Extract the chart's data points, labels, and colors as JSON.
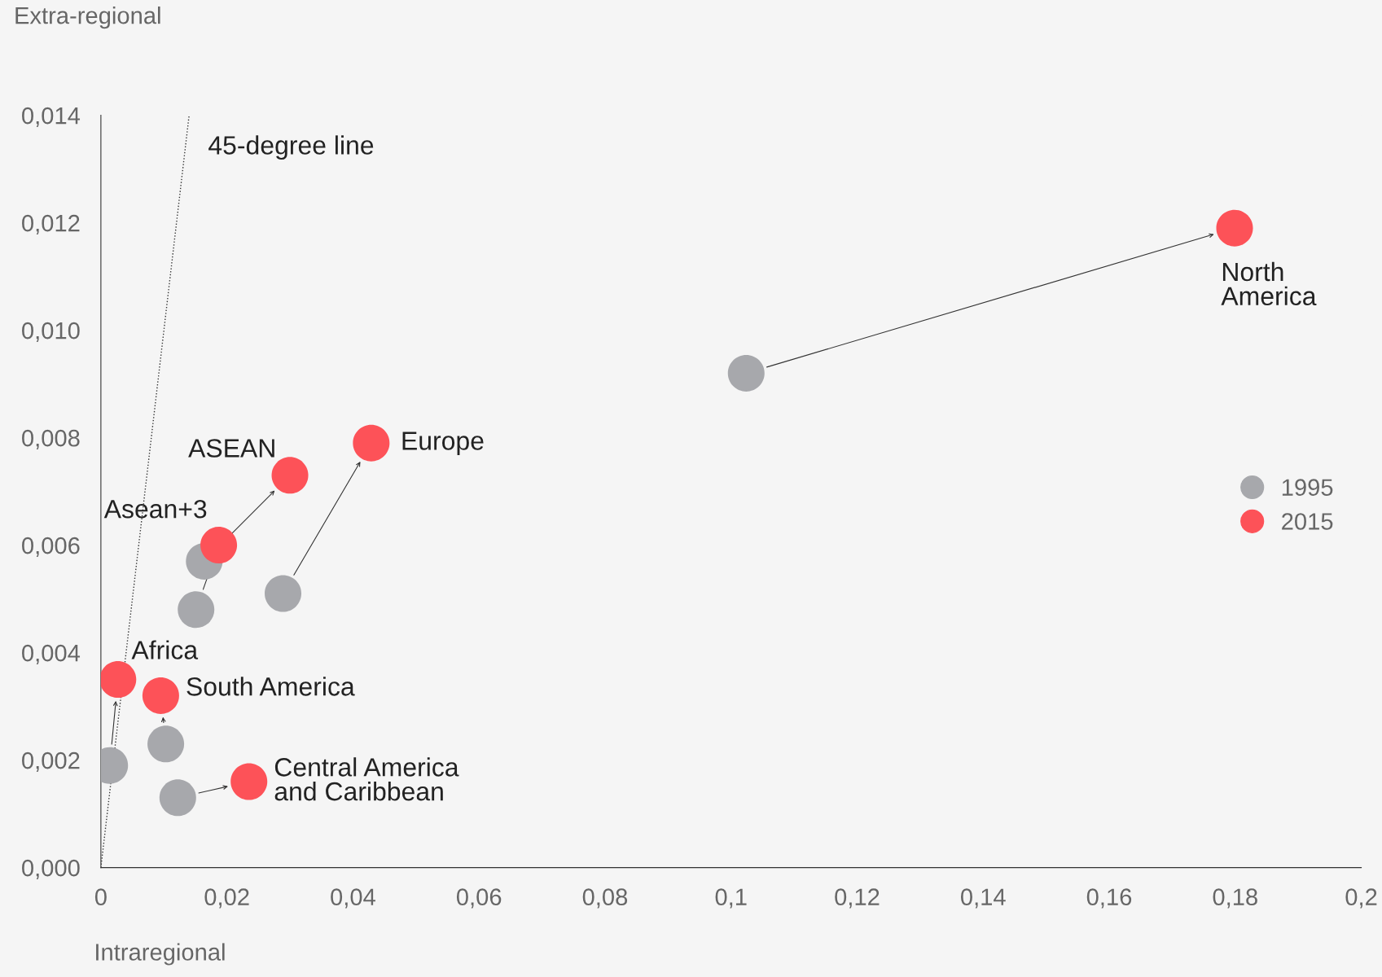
{
  "chart_data": {
    "type": "scatter",
    "xlabel": "Intraregional",
    "ylabel": "Extra-regional",
    "xlim": [
      0,
      0.2
    ],
    "ylim": [
      0,
      0.014
    ],
    "xticks": [
      0,
      {
        "value": 0.02,
        "label": "0,02"
      },
      {
        "value": 0.04,
        "label": "0,04"
      },
      {
        "value": 0.06,
        "label": "0,06"
      },
      {
        "value": 0.08,
        "label": "0,08"
      },
      {
        "value": 0.1,
        "label": "0,1"
      },
      {
        "value": 0.12,
        "label": "0,12"
      },
      {
        "value": 0.14,
        "label": "0,14"
      },
      {
        "value": 0.16,
        "label": "0,16"
      },
      {
        "value": 0.18,
        "label": "0,18"
      },
      {
        "value": 0.2,
        "label": "0,2"
      }
    ],
    "yticks": [
      {
        "value": 0,
        "label": "0,000"
      },
      {
        "value": 0.002,
        "label": "0,002"
      },
      {
        "value": 0.004,
        "label": "0,004"
      },
      {
        "value": 0.006,
        "label": "0,006"
      },
      {
        "value": 0.008,
        "label": "0,008"
      },
      {
        "value": 0.01,
        "label": "0,010"
      },
      {
        "value": 0.012,
        "label": "0,012"
      },
      {
        "value": 0.014,
        "label": "0,014"
      }
    ],
    "grid": false,
    "legend": "right",
    "marker": "circle",
    "series": [
      {
        "name": "1995",
        "color": "#a7a8ac",
        "x": [
          0.1024,
          0.0289,
          0.0164,
          0.0151,
          0.0014,
          0.0103,
          0.0122
        ],
        "values": [
          0.0092,
          0.0051,
          0.0057,
          0.0048,
          0.0019,
          0.0023,
          0.0013
        ]
      },
      {
        "name": "2015",
        "color": "#fd5258",
        "x": [
          0.1799,
          0.0429,
          0.03,
          0.0187,
          0.0027,
          0.0095,
          0.0235
        ],
        "values": [
          0.0119,
          0.0079,
          0.0073,
          0.006,
          0.0035,
          0.0032,
          0.0016
        ]
      },
      {
        "type": "line",
        "color": "#333333",
        "line_style": "dotted",
        "marker": "none",
        "x": [
          0,
          0.014
        ],
        "values": [
          0,
          0.014
        ]
      }
    ],
    "annotations": [
      {
        "text": "North\nAmerica",
        "x": 0.1799,
        "y": 0.0119
      },
      {
        "text": "Europe",
        "x": 0.0429,
        "y": 0.0079
      },
      {
        "text": "ASEAN",
        "x": 0.03,
        "y": 0.0073
      },
      {
        "text": "Asean+3",
        "x": 0.0187,
        "y": 0.006
      },
      {
        "text": "Africa",
        "x": 0.0027,
        "y": 0.0035
      },
      {
        "text": "South America",
        "x": 0.0095,
        "y": 0.0032
      },
      {
        "text": "Central America\nand Caribbean",
        "x": 0.0235,
        "y": 0.0016
      },
      {
        "text": "45-degree line",
        "x": 0.0134,
        "y": 0.0134
      }
    ]
  }
}
